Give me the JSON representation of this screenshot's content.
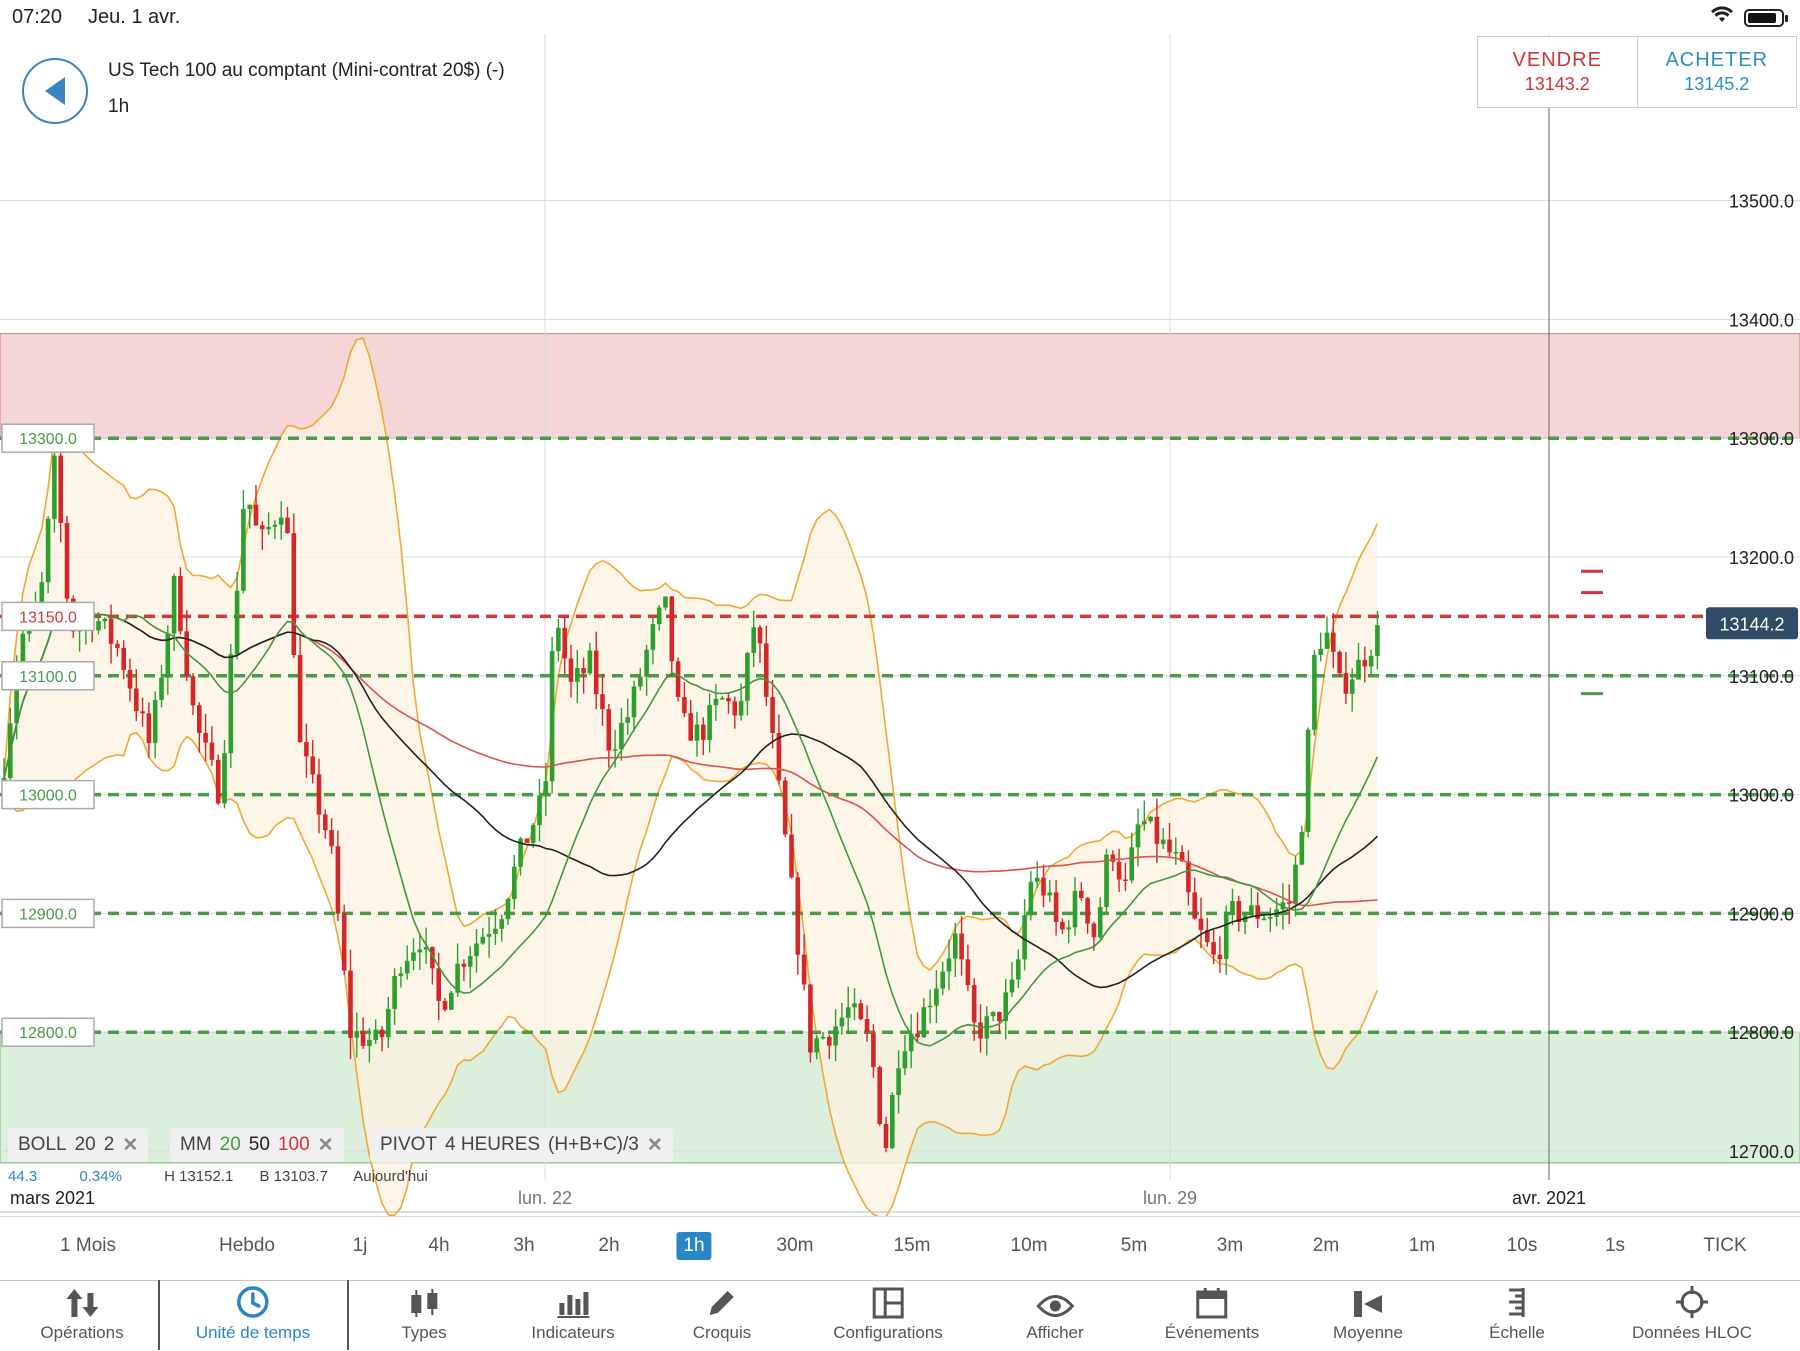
{
  "status_bar": {
    "time": "07:20",
    "date": "Jeu. 1 avr."
  },
  "instrument": {
    "title": "US Tech 100 au comptant (Mini-contrat 20$) (-)",
    "timeframe": "1h"
  },
  "trade": {
    "sell_label": "VENDRE",
    "sell_price": "13143.2",
    "buy_label": "ACHETER",
    "buy_price": "13145.2"
  },
  "colors": {
    "sell": "#d0333a",
    "buy": "#2d8ec4",
    "up_candle": "#2ca02c",
    "down_candle": "#d62728",
    "bollinger": "#f0a830",
    "ma_fast": "#3f9a3f",
    "ma_mid": "#222222",
    "ma_slow": "#d9534f",
    "resistance_zone": "#f6d5d7",
    "support_zone": "#dcefdc",
    "accent": "#2a86c7"
  },
  "indicators": [
    {
      "name": "BOLL",
      "params": [
        "20",
        "2"
      ]
    },
    {
      "name": "MM",
      "params": [
        "20",
        "50",
        "100"
      ]
    },
    {
      "name": "PIVOT",
      "params": [
        "4 HEURES",
        "(H+B+C)/3"
      ]
    }
  ],
  "info_row": {
    "a": "44.3",
    "b": "0.34%",
    "h": "H 13152.1",
    "l": "B 13103.7",
    "today": "Aujourd'hui"
  },
  "timeframes": [
    "1 Mois",
    "Hebdo",
    "1j",
    "4h",
    "3h",
    "2h",
    "1h",
    "30m",
    "15m",
    "10m",
    "5m",
    "3m",
    "2m",
    "1m",
    "10s",
    "1s",
    "TICK"
  ],
  "active_timeframe": "1h",
  "toolbar": [
    {
      "label": "Opérations",
      "icon": "operations-icon"
    },
    {
      "label": "Unité de temps",
      "icon": "clock-icon"
    },
    {
      "label": "Types",
      "icon": "candles-icon"
    },
    {
      "label": "Indicateurs",
      "icon": "indicators-icon"
    },
    {
      "label": "Croquis",
      "icon": "pencil-icon"
    },
    {
      "label": "Configurations",
      "icon": "layout-icon"
    },
    {
      "label": "Afficher",
      "icon": "eye-icon"
    },
    {
      "label": "Événements",
      "icon": "calendar-icon"
    },
    {
      "label": "Moyenne",
      "icon": "average-icon"
    },
    {
      "label": "Échelle",
      "icon": "scale-icon"
    },
    {
      "label": "Données HLOC",
      "icon": "crosshair-icon"
    }
  ],
  "active_tool": "Unité de temps",
  "chart_data": {
    "type": "candlestick",
    "ylim": [
      12670,
      13590
    ],
    "y_ticks": [
      "13500.0",
      "13400.0",
      "13300.0",
      "13200.0",
      "13100.0",
      "13000.0",
      "12900.0",
      "12800.0",
      "12700.0"
    ],
    "x_labels": [
      "mars 2021",
      "lun. 22",
      "lun. 29",
      "avr. 2021"
    ],
    "current_price": "13144.2",
    "resistance_zone": [
      13300,
      13388
    ],
    "support_zone": [
      12690,
      12800
    ],
    "pivot_levels": [
      {
        "value": 13300,
        "label": "13300.0",
        "color": "green"
      },
      {
        "value": 13150,
        "label": "13150.0",
        "color": "red"
      },
      {
        "value": 13100,
        "label": "13100.0",
        "color": "green"
      },
      {
        "value": 13000,
        "label": "13000.0",
        "color": "green"
      },
      {
        "value": 12900,
        "label": "12900.0",
        "color": "green"
      },
      {
        "value": 12800,
        "label": "12800.0",
        "color": "green"
      }
    ],
    "price_anchors": [
      [
        0,
        13000
      ],
      [
        20,
        13130
      ],
      [
        40,
        13160
      ],
      [
        55,
        13280
      ],
      [
        70,
        13140
      ],
      [
        95,
        13150
      ],
      [
        120,
        13120
      ],
      [
        150,
        13040
      ],
      [
        175,
        13180
      ],
      [
        195,
        13060
      ],
      [
        220,
        13000
      ],
      [
        245,
        13260
      ],
      [
        260,
        13210
      ],
      [
        285,
        13250
      ],
      [
        300,
        13040
      ],
      [
        330,
        12960
      ],
      [
        350,
        12800
      ],
      [
        380,
        12790
      ],
      [
        400,
        12860
      ],
      [
        420,
        12880
      ],
      [
        440,
        12820
      ],
      [
        460,
        12860
      ],
      [
        480,
        12880
      ],
      [
        500,
        12900
      ],
      [
        520,
        12950
      ],
      [
        545,
        13000
      ],
      [
        555,
        13160
      ],
      [
        570,
        13090
      ],
      [
        590,
        13110
      ],
      [
        610,
        13040
      ],
      [
        630,
        13070
      ],
      [
        650,
        13130
      ],
      [
        665,
        13160
      ],
      [
        680,
        13060
      ],
      [
        700,
        13050
      ],
      [
        720,
        13080
      ],
      [
        740,
        13070
      ],
      [
        755,
        13150
      ],
      [
        770,
        13060
      ],
      [
        790,
        12930
      ],
      [
        810,
        12790
      ],
      [
        830,
        12800
      ],
      [
        850,
        12820
      ],
      [
        870,
        12790
      ],
      [
        885,
        12700
      ],
      [
        900,
        12790
      ],
      [
        920,
        12810
      ],
      [
        940,
        12850
      ],
      [
        955,
        12880
      ],
      [
        975,
        12800
      ],
      [
        995,
        12810
      ],
      [
        1015,
        12840
      ],
      [
        1030,
        12930
      ],
      [
        1045,
        12920
      ],
      [
        1060,
        12880
      ],
      [
        1080,
        12920
      ],
      [
        1095,
        12880
      ],
      [
        1110,
        12960
      ],
      [
        1125,
        12920
      ],
      [
        1140,
        12980
      ],
      [
        1160,
        12960
      ],
      [
        1180,
        12940
      ],
      [
        1195,
        12890
      ],
      [
        1215,
        12860
      ],
      [
        1230,
        12900
      ],
      [
        1250,
        12900
      ],
      [
        1270,
        12900
      ],
      [
        1290,
        12910
      ],
      [
        1300,
        12960
      ],
      [
        1315,
        13120
      ],
      [
        1325,
        13140
      ],
      [
        1340,
        13090
      ],
      [
        1360,
        13110
      ],
      [
        1380,
        13140
      ]
    ]
  }
}
